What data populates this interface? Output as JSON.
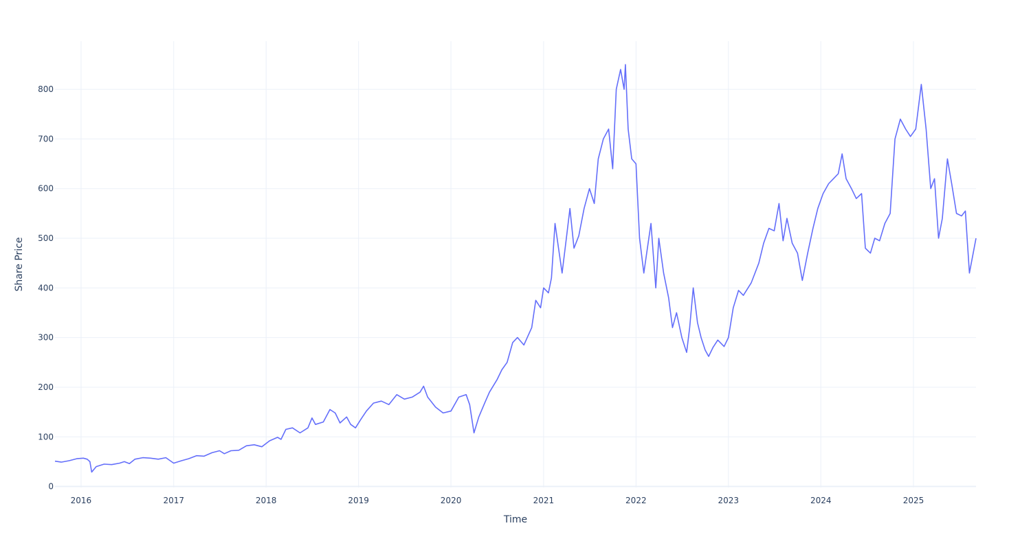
{
  "chart_data": {
    "type": "line",
    "title": "",
    "xlabel": "Time",
    "ylabel": "Share Price",
    "x_tick_labels": [
      "2016",
      "2017",
      "2018",
      "2019",
      "2020",
      "2021",
      "2022",
      "2023",
      "2024",
      "2025"
    ],
    "x_tick_dates": [
      "2016-01-01",
      "2017-01-01",
      "2018-01-01",
      "2019-01-01",
      "2020-01-01",
      "2021-01-01",
      "2022-01-01",
      "2023-01-01",
      "2024-01-01",
      "2025-01-01"
    ],
    "xlim": [
      "2015-09-20",
      "2025-09-05"
    ],
    "y_ticks": [
      0,
      100,
      200,
      300,
      400,
      500,
      600,
      700,
      800
    ],
    "ylim": [
      -2,
      897
    ],
    "grid": true,
    "legend": "none",
    "line_color": "#636efa",
    "series": [
      {
        "points": [
          [
            "2015-09-20",
            51
          ],
          [
            "2015-10-15",
            49
          ],
          [
            "2015-11-15",
            52
          ],
          [
            "2015-12-15",
            56
          ],
          [
            "2016-01-10",
            57
          ],
          [
            "2016-01-25",
            55
          ],
          [
            "2016-02-05",
            50
          ],
          [
            "2016-02-12",
            29
          ],
          [
            "2016-03-01",
            40
          ],
          [
            "2016-04-01",
            45
          ],
          [
            "2016-05-01",
            44
          ],
          [
            "2016-06-01",
            47
          ],
          [
            "2016-06-20",
            50
          ],
          [
            "2016-07-10",
            46
          ],
          [
            "2016-08-01",
            55
          ],
          [
            "2016-09-01",
            58
          ],
          [
            "2016-10-01",
            57
          ],
          [
            "2016-11-01",
            55
          ],
          [
            "2016-12-01",
            58
          ],
          [
            "2017-01-01",
            47
          ],
          [
            "2017-02-01",
            52
          ],
          [
            "2017-03-01",
            56
          ],
          [
            "2017-04-01",
            62
          ],
          [
            "2017-05-01",
            61
          ],
          [
            "2017-06-01",
            68
          ],
          [
            "2017-07-01",
            72
          ],
          [
            "2017-07-20",
            66
          ],
          [
            "2017-08-15",
            72
          ],
          [
            "2017-09-15",
            73
          ],
          [
            "2017-10-15",
            82
          ],
          [
            "2017-11-15",
            84
          ],
          [
            "2017-12-15",
            80
          ],
          [
            "2018-01-15",
            92
          ],
          [
            "2018-02-15",
            99
          ],
          [
            "2018-03-01",
            95
          ],
          [
            "2018-03-20",
            115
          ],
          [
            "2018-04-15",
            118
          ],
          [
            "2018-05-15",
            108
          ],
          [
            "2018-06-15",
            118
          ],
          [
            "2018-07-01",
            138
          ],
          [
            "2018-07-15",
            125
          ],
          [
            "2018-08-15",
            130
          ],
          [
            "2018-09-10",
            155
          ],
          [
            "2018-10-01",
            148
          ],
          [
            "2018-10-20",
            128
          ],
          [
            "2018-11-15",
            140
          ],
          [
            "2018-12-01",
            125
          ],
          [
            "2018-12-20",
            118
          ],
          [
            "2019-01-10",
            135
          ],
          [
            "2019-02-01",
            152
          ],
          [
            "2019-03-01",
            168
          ],
          [
            "2019-04-01",
            172
          ],
          [
            "2019-05-01",
            165
          ],
          [
            "2019-06-01",
            185
          ],
          [
            "2019-07-01",
            176
          ],
          [
            "2019-08-01",
            180
          ],
          [
            "2019-09-01",
            190
          ],
          [
            "2019-09-15",
            202
          ],
          [
            "2019-10-01",
            180
          ],
          [
            "2019-11-01",
            160
          ],
          [
            "2019-12-01",
            148
          ],
          [
            "2020-01-01",
            152
          ],
          [
            "2020-02-01",
            180
          ],
          [
            "2020-03-01",
            185
          ],
          [
            "2020-03-15",
            165
          ],
          [
            "2020-04-01",
            108
          ],
          [
            "2020-04-20",
            140
          ],
          [
            "2020-05-15",
            170
          ],
          [
            "2020-06-01",
            190
          ],
          [
            "2020-07-01",
            215
          ],
          [
            "2020-07-20",
            235
          ],
          [
            "2020-08-10",
            250
          ],
          [
            "2020-09-01",
            290
          ],
          [
            "2020-09-20",
            300
          ],
          [
            "2020-10-15",
            285
          ],
          [
            "2020-11-15",
            320
          ],
          [
            "2020-12-01",
            375
          ],
          [
            "2020-12-20",
            360
          ],
          [
            "2021-01-01",
            400
          ],
          [
            "2021-01-20",
            390
          ],
          [
            "2021-02-01",
            420
          ],
          [
            "2021-02-15",
            530
          ],
          [
            "2021-03-01",
            480
          ],
          [
            "2021-03-15",
            430
          ],
          [
            "2021-04-01",
            500
          ],
          [
            "2021-04-15",
            560
          ],
          [
            "2021-05-01",
            480
          ],
          [
            "2021-05-20",
            505
          ],
          [
            "2021-06-10",
            560
          ],
          [
            "2021-07-01",
            600
          ],
          [
            "2021-07-20",
            570
          ],
          [
            "2021-08-05",
            660
          ],
          [
            "2021-08-25",
            700
          ],
          [
            "2021-09-15",
            720
          ],
          [
            "2021-10-01",
            640
          ],
          [
            "2021-10-15",
            800
          ],
          [
            "2021-11-01",
            840
          ],
          [
            "2021-11-15",
            800
          ],
          [
            "2021-11-20",
            850
          ],
          [
            "2021-12-01",
            720
          ],
          [
            "2021-12-15",
            660
          ],
          [
            "2022-01-01",
            650
          ],
          [
            "2022-01-15",
            500
          ],
          [
            "2022-02-01",
            430
          ],
          [
            "2022-02-15",
            480
          ],
          [
            "2022-03-01",
            530
          ],
          [
            "2022-03-20",
            400
          ],
          [
            "2022-04-01",
            500
          ],
          [
            "2022-04-20",
            430
          ],
          [
            "2022-05-10",
            380
          ],
          [
            "2022-05-25",
            320
          ],
          [
            "2022-06-10",
            350
          ],
          [
            "2022-07-01",
            300
          ],
          [
            "2022-07-20",
            270
          ],
          [
            "2022-08-01",
            320
          ],
          [
            "2022-08-15",
            400
          ],
          [
            "2022-09-01",
            330
          ],
          [
            "2022-09-15",
            300
          ],
          [
            "2022-10-01",
            275
          ],
          [
            "2022-10-15",
            262
          ],
          [
            "2022-11-01",
            280
          ],
          [
            "2022-11-20",
            295
          ],
          [
            "2022-12-15",
            282
          ],
          [
            "2023-01-01",
            300
          ],
          [
            "2023-01-20",
            360
          ],
          [
            "2023-02-10",
            395
          ],
          [
            "2023-03-01",
            385
          ],
          [
            "2023-04-01",
            410
          ],
          [
            "2023-05-01",
            450
          ],
          [
            "2023-05-20",
            490
          ],
          [
            "2023-06-10",
            520
          ],
          [
            "2023-07-01",
            515
          ],
          [
            "2023-07-20",
            570
          ],
          [
            "2023-08-05",
            495
          ],
          [
            "2023-08-20",
            540
          ],
          [
            "2023-09-10",
            490
          ],
          [
            "2023-10-01",
            470
          ],
          [
            "2023-10-20",
            415
          ],
          [
            "2023-11-10",
            470
          ],
          [
            "2023-12-01",
            520
          ],
          [
            "2023-12-20",
            560
          ],
          [
            "2024-01-10",
            590
          ],
          [
            "2024-02-01",
            610
          ],
          [
            "2024-02-20",
            620
          ],
          [
            "2024-03-10",
            630
          ],
          [
            "2024-03-25",
            670
          ],
          [
            "2024-04-10",
            620
          ],
          [
            "2024-05-01",
            600
          ],
          [
            "2024-05-20",
            580
          ],
          [
            "2024-06-10",
            590
          ],
          [
            "2024-06-25",
            480
          ],
          [
            "2024-07-15",
            470
          ],
          [
            "2024-08-01",
            500
          ],
          [
            "2024-08-20",
            495
          ],
          [
            "2024-09-10",
            530
          ],
          [
            "2024-10-01",
            550
          ],
          [
            "2024-10-20",
            700
          ],
          [
            "2024-11-10",
            740
          ],
          [
            "2024-12-01",
            720
          ],
          [
            "2024-12-20",
            705
          ],
          [
            "2025-01-10",
            720
          ],
          [
            "2025-02-01",
            810
          ],
          [
            "2025-02-20",
            720
          ],
          [
            "2025-03-10",
            600
          ],
          [
            "2025-03-25",
            620
          ],
          [
            "2025-04-10",
            500
          ],
          [
            "2025-04-25",
            540
          ],
          [
            "2025-05-15",
            660
          ],
          [
            "2025-06-01",
            610
          ],
          [
            "2025-06-20",
            550
          ],
          [
            "2025-07-10",
            545
          ],
          [
            "2025-07-25",
            555
          ],
          [
            "2025-08-10",
            430
          ],
          [
            "2025-08-25",
            470
          ],
          [
            "2025-09-05",
            500
          ]
        ]
      }
    ]
  }
}
